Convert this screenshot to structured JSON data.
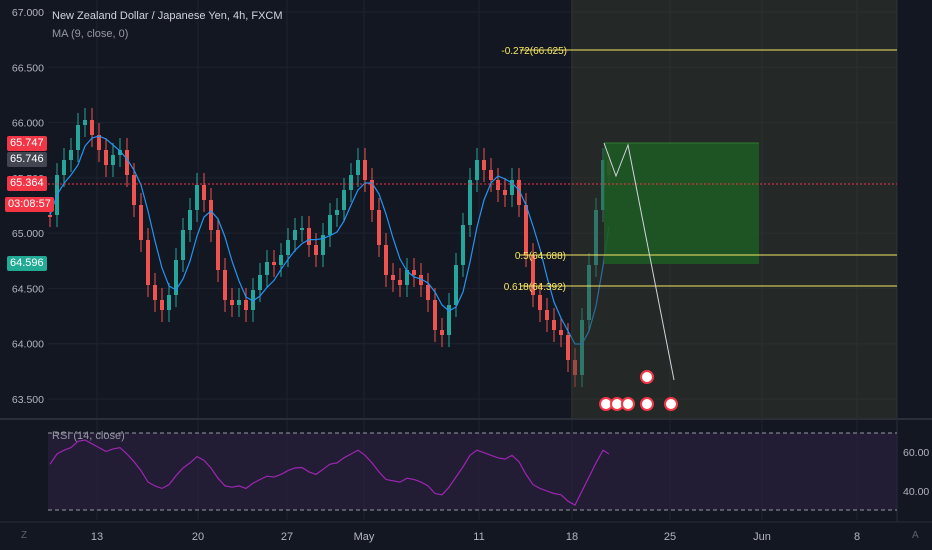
{
  "header": {
    "title": "New Zealand Dollar / Japanese Yen, 4h, FXCM",
    "indicator": "MA (9, close, 0)",
    "rsi_label": "RSI (14, close)"
  },
  "price_tags": {
    "tag1": "65.747",
    "tag2": "65.746",
    "tag3": "65.364",
    "countdown": "03:08:57",
    "tag4": "64.596"
  },
  "fib_labels": {
    "ext": "-0.272(66.625)",
    "half": "0.5(64.688)",
    "low": "0.618(64.392)"
  },
  "corners": {
    "left": "Z",
    "right": "A"
  },
  "colors": {
    "bg": "#131722",
    "grid": "#1f2330",
    "bull": "#26a69a",
    "bear": "#ef5350",
    "ma": "#2196f3",
    "fib": "#f5e663",
    "rsi": "#9c27b0",
    "position_green": "#1d5c24",
    "tag_red": "#f23645",
    "tag_green": "#22ab94"
  },
  "chart_data": [
    {
      "type": "candlestick",
      "title": "New Zealand Dollar / Japanese Yen, 4h, FXCM",
      "x_ticks": [
        "13",
        "20",
        "27",
        "May",
        "11",
        "18",
        "25",
        "Jun",
        "8"
      ],
      "y_ticks": [
        "67.000",
        "66.500",
        "66.000",
        "65.500",
        "65.000",
        "64.500",
        "64.000",
        "63.500"
      ],
      "ylim": [
        63.35,
        67.05
      ],
      "series": [
        {
          "name": "MA (9, close, 0)"
        }
      ],
      "annotations": {
        "fib_levels": [
          66.625,
          64.688,
          64.392
        ],
        "current_price": 65.364
      }
    },
    {
      "type": "line",
      "title": "RSI (14, close)",
      "y_ticks": [
        "60.00",
        "40.00"
      ],
      "ylim": [
        25,
        75
      ],
      "bands": [
        70,
        30
      ]
    }
  ]
}
